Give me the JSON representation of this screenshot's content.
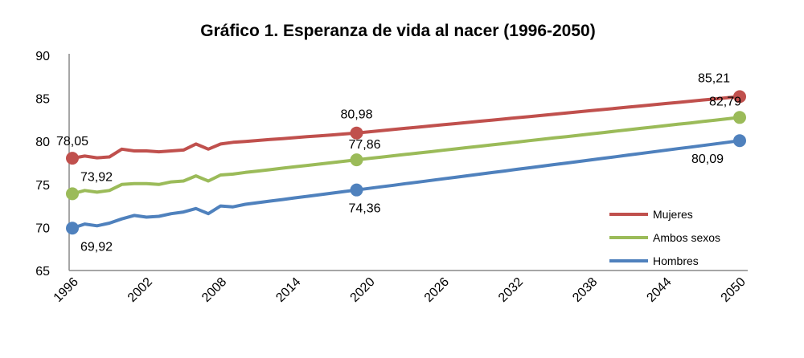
{
  "chart_data": {
    "type": "line",
    "title": "Gráfico 1. Esperanza de vida al nacer (1996-2050)",
    "xlabel": "",
    "ylabel": "",
    "ylim": [
      65,
      90
    ],
    "yticks": [
      "65",
      "70",
      "75",
      "80",
      "85",
      "90"
    ],
    "xlim": [
      1996,
      2050
    ],
    "xticks": [
      "1996",
      "2002",
      "2008",
      "2014",
      "2020",
      "2026",
      "2032",
      "2038",
      "2044",
      "2050"
    ],
    "grid": false,
    "legend_position": "bottom-right",
    "x_start": 1996,
    "series": [
      {
        "name": "Mujeres",
        "color": "#c0504d",
        "values": [
          78.05,
          78.3,
          78.1,
          78.2,
          79.1,
          78.9,
          78.9,
          78.8,
          78.9,
          79.0,
          79.7,
          79.1,
          79.7,
          79.9,
          80.0,
          80.11,
          80.22,
          80.33,
          80.44,
          80.55,
          80.65,
          80.76,
          80.87,
          80.98,
          81.12,
          81.25,
          81.39,
          81.53,
          81.66,
          81.8,
          81.94,
          82.07,
          82.21,
          82.35,
          82.48,
          82.62,
          82.76,
          82.89,
          83.03,
          83.17,
          83.3,
          83.44,
          83.58,
          83.71,
          83.85,
          83.99,
          84.12,
          84.26,
          84.4,
          84.53,
          84.67,
          84.81,
          84.94,
          85.08,
          85.21
        ]
      },
      {
        "name": "Ambos sexos",
        "color": "#9bbb59",
        "values": [
          73.92,
          74.3,
          74.1,
          74.3,
          75.0,
          75.1,
          75.1,
          75.0,
          75.3,
          75.4,
          76.0,
          75.4,
          76.1,
          76.2,
          76.4,
          76.56,
          76.72,
          76.89,
          77.05,
          77.21,
          77.37,
          77.54,
          77.7,
          77.86,
          78.02,
          78.18,
          78.34,
          78.5,
          78.66,
          78.81,
          78.97,
          79.13,
          79.29,
          79.45,
          79.61,
          79.77,
          79.93,
          80.09,
          80.25,
          80.41,
          80.56,
          80.72,
          80.88,
          81.04,
          81.2,
          81.36,
          81.52,
          81.68,
          81.84,
          82.0,
          82.15,
          82.31,
          82.47,
          82.63,
          82.79
        ]
      },
      {
        "name": "Hombres",
        "color": "#4f81bd",
        "values": [
          69.92,
          70.4,
          70.2,
          70.5,
          71.0,
          71.4,
          71.2,
          71.3,
          71.6,
          71.8,
          72.2,
          71.6,
          72.5,
          72.4,
          72.7,
          72.88,
          73.07,
          73.25,
          73.44,
          73.62,
          73.81,
          73.99,
          74.18,
          74.36,
          74.54,
          74.73,
          74.91,
          75.1,
          75.28,
          75.47,
          75.65,
          75.83,
          76.02,
          76.2,
          76.39,
          76.57,
          76.76,
          76.94,
          77.13,
          77.31,
          77.49,
          77.68,
          77.86,
          78.05,
          78.23,
          78.42,
          78.6,
          78.79,
          78.97,
          79.16,
          79.34,
          79.52,
          79.71,
          79.9,
          80.09
        ]
      }
    ],
    "data_labels": [
      {
        "series": 0,
        "year": 1996,
        "text": "78,05"
      },
      {
        "series": 1,
        "year": 1996,
        "text": "73,92"
      },
      {
        "series": 2,
        "year": 1996,
        "text": "69,92"
      },
      {
        "series": 0,
        "year": 2019,
        "text": "80,98"
      },
      {
        "series": 1,
        "year": 2019,
        "text": "77,86"
      },
      {
        "series": 2,
        "year": 2019,
        "text": "74,36"
      },
      {
        "series": 0,
        "year": 2050,
        "text": "85,21"
      },
      {
        "series": 1,
        "year": 2050,
        "text": "82,79"
      },
      {
        "series": 2,
        "year": 2050,
        "text": "80,09"
      }
    ]
  }
}
